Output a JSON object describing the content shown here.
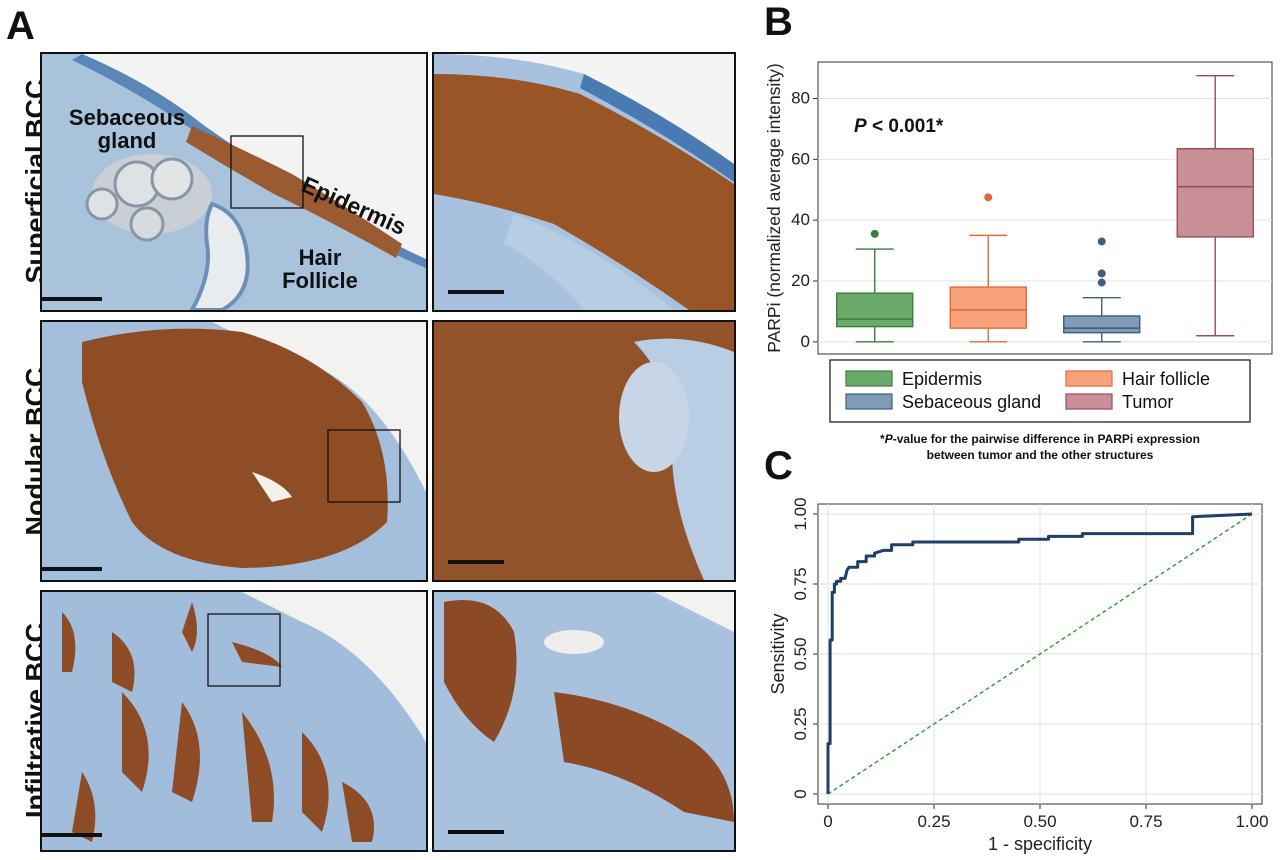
{
  "panels": {
    "a": "A",
    "b": "B",
    "c": "C"
  },
  "row_labels": [
    "Superficial BCC",
    "Nodular BCC",
    "Infiltrative BCC"
  ],
  "annotations": {
    "sebaceous_1": "Sebaceous",
    "sebaceous_2": "gland",
    "epidermis": "Epidermis",
    "hair_1": "Hair",
    "hair_2": "Follicle"
  },
  "colors": {
    "stroma": "#8fb1d6",
    "nuclei": "#8a4a22",
    "epidermis": "#4f7fb5",
    "box_epidermis": "#2e7d32",
    "box_hair": "#f6956b",
    "box_sebaceous": "#6e8ca8",
    "box_tumor": "#b36f7a",
    "roc_curve": "#1f3f66",
    "reference": "#2e9b2e"
  },
  "chart_data": [
    {
      "type": "box",
      "ylabel": "PARPi (normalized average intensity)",
      "ylim": [
        -4,
        92
      ],
      "yticks": [
        0,
        20,
        40,
        60,
        80
      ],
      "annotation_p": "P",
      "annotation_rest": " < 0.001*",
      "grid": true,
      "legend_position": "bottom",
      "series": [
        {
          "name": "Epidermis",
          "color": "#6aaa6a",
          "edge": "#3e7d3e",
          "min": 0,
          "q1": 5,
          "median": 7.5,
          "q3": 16,
          "max": 30.5,
          "outliers": [
            35.5
          ]
        },
        {
          "name": "Hair follicle",
          "color": "#f9a27b",
          "edge": "#e36a3d",
          "min": 0,
          "q1": 4.5,
          "median": 10.5,
          "q3": 18,
          "max": 35,
          "outliers": [
            47.5
          ]
        },
        {
          "name": "Sebaceous gland",
          "color": "#7f9bb5",
          "edge": "#3f5e80",
          "min": 0,
          "q1": 3,
          "median": 4.5,
          "q3": 8.5,
          "max": 14.5,
          "outliers": [
            19.5,
            22.5,
            33
          ]
        },
        {
          "name": "Tumor",
          "color": "#c98f97",
          "edge": "#9a4d57",
          "min": 2,
          "q1": 34.5,
          "median": 51,
          "q3": 63.5,
          "max": 87.5,
          "outliers": []
        }
      ],
      "footnote_line1_prefix": "*",
      "footnote_line1_italic": "P",
      "footnote_line1_rest": "-value for the pairwise difference in PARPi expression",
      "footnote_line2": "between tumor and the other structures"
    },
    {
      "type": "line",
      "xlabel": "1 - specificity",
      "ylabel": "Sensitivity",
      "xlim": [
        0,
        1
      ],
      "ylim": [
        0,
        1
      ],
      "xticks": [
        "0",
        "0.25",
        "0.50",
        "0.75",
        "1.00"
      ],
      "yticks": [
        "0",
        "0.25",
        "0.50",
        "0.75",
        "1.00"
      ],
      "grid": true,
      "series": [
        {
          "name": "ROC",
          "x": [
            0,
            0,
            0.005,
            0.005,
            0.01,
            0.01,
            0.015,
            0.015,
            0.02,
            0.02,
            0.03,
            0.03,
            0.04,
            0.045,
            0.05,
            0.07,
            0.07,
            0.09,
            0.09,
            0.11,
            0.11,
            0.13,
            0.15,
            0.15,
            0.18,
            0.2,
            0.2,
            0.45,
            0.45,
            0.5,
            0.52,
            0.52,
            0.56,
            0.6,
            0.6,
            0.85,
            0.86,
            0.86,
            1.0
          ],
          "y": [
            0,
            0.18,
            0.18,
            0.55,
            0.55,
            0.72,
            0.72,
            0.75,
            0.75,
            0.76,
            0.76,
            0.77,
            0.77,
            0.8,
            0.81,
            0.81,
            0.83,
            0.83,
            0.85,
            0.85,
            0.86,
            0.87,
            0.87,
            0.89,
            0.89,
            0.89,
            0.9,
            0.9,
            0.91,
            0.91,
            0.91,
            0.92,
            0.92,
            0.92,
            0.93,
            0.93,
            0.93,
            0.99,
            1.0
          ]
        },
        {
          "name": "Reference",
          "x": [
            0,
            1
          ],
          "y": [
            0,
            1
          ]
        }
      ]
    }
  ]
}
